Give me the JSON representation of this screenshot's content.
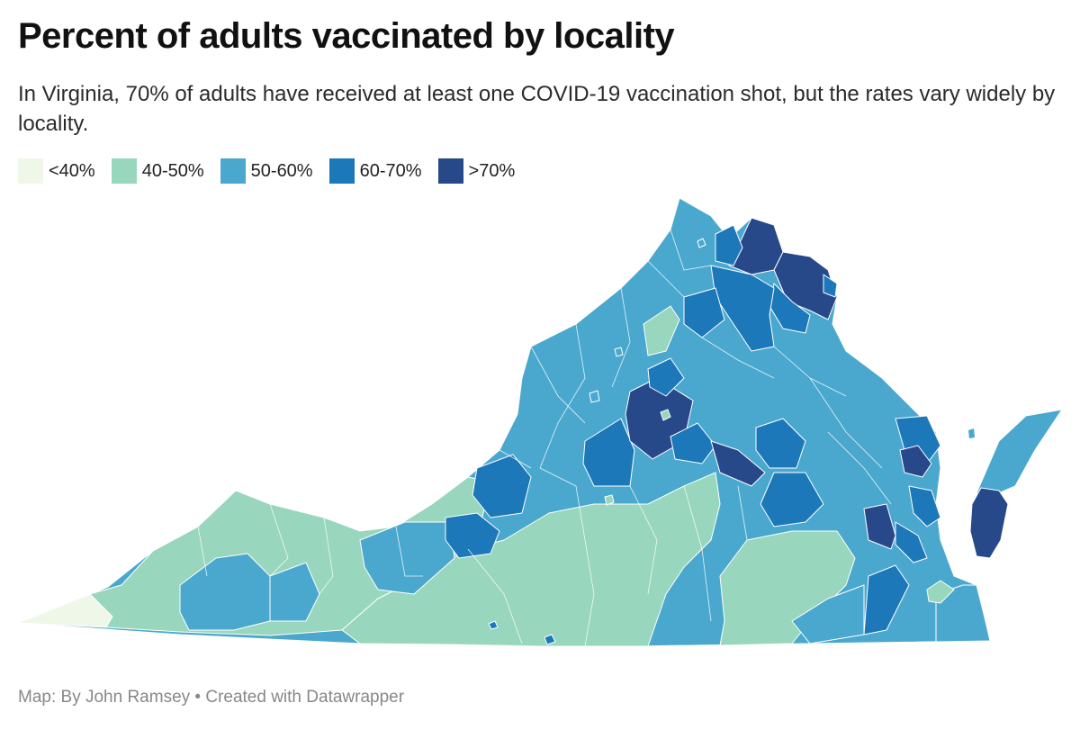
{
  "title": "Percent of adults vaccinated by locality",
  "subtitle": "In Virginia, 70% of adults have received at least one COVID-19 vaccination shot, but the rates vary widely by locality.",
  "legend": [
    {
      "label": "<40%",
      "color": "#eff8e8"
    },
    {
      "label": "40-50%",
      "color": "#98d6bd"
    },
    {
      "label": "50-60%",
      "color": "#4aa8ce"
    },
    {
      "label": "60-70%",
      "color": "#1c78b9"
    },
    {
      "label": ">70%",
      "color": "#27498a"
    }
  ],
  "footer": "Map: By John Ramsey • Created with Datawrapper"
}
